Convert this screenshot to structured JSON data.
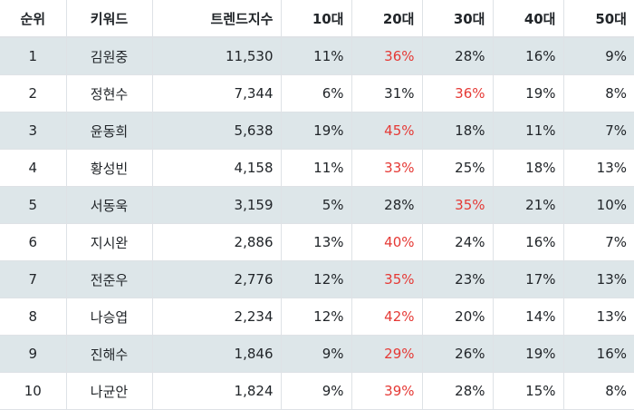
{
  "headers": {
    "rank": "순위",
    "keyword": "키워드",
    "trend": "트렌드지수",
    "age10": "10대",
    "age20": "20대",
    "age30": "30대",
    "age40": "40대",
    "age50": "50대"
  },
  "highlight_color": "#e53935",
  "stripe_color": "#dde6e9",
  "rows": [
    {
      "rank": "1",
      "keyword": "김원중",
      "trend": "11,530",
      "age10": "11%",
      "age20": "36%",
      "age30": "28%",
      "age40": "16%",
      "age50": "9%",
      "highlight": "age20"
    },
    {
      "rank": "2",
      "keyword": "정현수",
      "trend": "7,344",
      "age10": "6%",
      "age20": "31%",
      "age30": "36%",
      "age40": "19%",
      "age50": "8%",
      "highlight": "age30"
    },
    {
      "rank": "3",
      "keyword": "윤동희",
      "trend": "5,638",
      "age10": "19%",
      "age20": "45%",
      "age30": "18%",
      "age40": "11%",
      "age50": "7%",
      "highlight": "age20"
    },
    {
      "rank": "4",
      "keyword": "황성빈",
      "trend": "4,158",
      "age10": "11%",
      "age20": "33%",
      "age30": "25%",
      "age40": "18%",
      "age50": "13%",
      "highlight": "age20"
    },
    {
      "rank": "5",
      "keyword": "서동욱",
      "trend": "3,159",
      "age10": "5%",
      "age20": "28%",
      "age30": "35%",
      "age40": "21%",
      "age50": "10%",
      "highlight": "age30"
    },
    {
      "rank": "6",
      "keyword": "지시완",
      "trend": "2,886",
      "age10": "13%",
      "age20": "40%",
      "age30": "24%",
      "age40": "16%",
      "age50": "7%",
      "highlight": "age20"
    },
    {
      "rank": "7",
      "keyword": "전준우",
      "trend": "2,776",
      "age10": "12%",
      "age20": "35%",
      "age30": "23%",
      "age40": "17%",
      "age50": "13%",
      "highlight": "age20"
    },
    {
      "rank": "8",
      "keyword": "나승엽",
      "trend": "2,234",
      "age10": "12%",
      "age20": "42%",
      "age30": "20%",
      "age40": "14%",
      "age50": "13%",
      "highlight": "age20"
    },
    {
      "rank": "9",
      "keyword": "진해수",
      "trend": "1,846",
      "age10": "9%",
      "age20": "29%",
      "age30": "26%",
      "age40": "19%",
      "age50": "16%",
      "highlight": "age20"
    },
    {
      "rank": "10",
      "keyword": "나균안",
      "trend": "1,824",
      "age10": "9%",
      "age20": "39%",
      "age30": "28%",
      "age40": "15%",
      "age50": "8%",
      "highlight": "age20"
    }
  ]
}
